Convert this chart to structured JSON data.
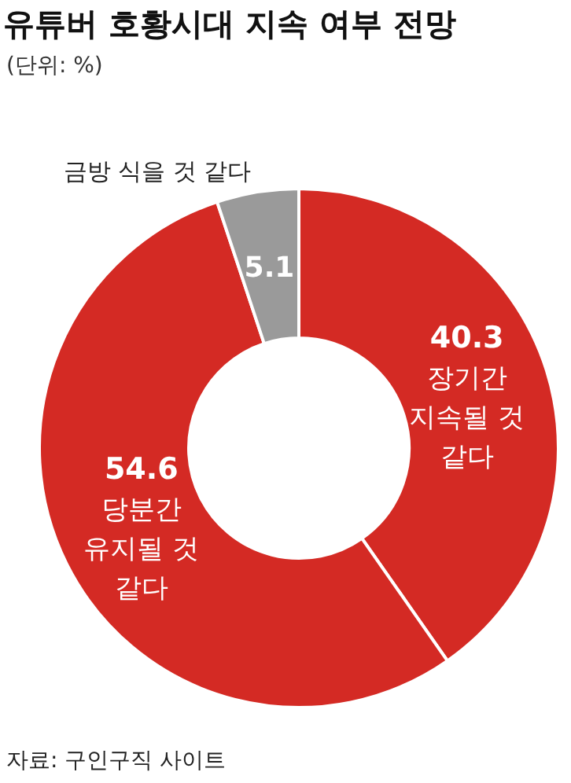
{
  "chart_data": {
    "type": "donut",
    "title": "유튜버 호황시대 지속 여부 전망",
    "subtitle": "(단위: %)",
    "categories": [
      "장기간 지속될 것 같다",
      "당분간 유지될 것 같다",
      "금방 식을 것 같다"
    ],
    "values": [
      40.3,
      54.6,
      5.1
    ],
    "colors": [
      "#d42a24",
      "#d42a24",
      "#9a9a9a"
    ],
    "data_labels": true,
    "annotations": [
      "자료: 구인구직 사이트"
    ]
  }
}
